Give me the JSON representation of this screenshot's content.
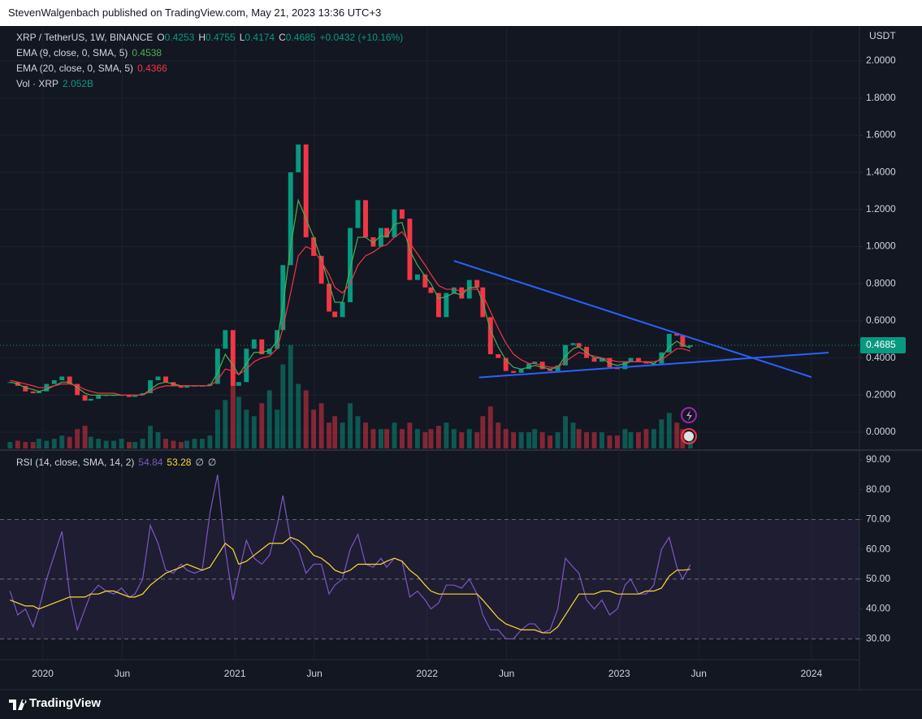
{
  "header": {
    "publisher": "StevenWalgenbach published on TradingView.com, May 21, 2023 13:36 UTC+3"
  },
  "footer": {
    "brand": "TradingView"
  },
  "chart_data": {
    "type": "candlestick",
    "title": "XRP / TetherUS, 1W, BINANCE",
    "ohlc": [
      {
        "label": "O",
        "value": 0.4253
      },
      {
        "label": "H",
        "value": 0.4755
      },
      {
        "label": "L",
        "value": 0.4174
      },
      {
        "label": "C",
        "value": 0.4685
      }
    ],
    "change": "+0.0432 (+10.16%)",
    "axis_label": "USDT",
    "up_color": "#089981",
    "down_color": "#f23645",
    "xlim": [
      2019.82,
      2024.25
    ],
    "xticks": [
      2020,
      {
        "value": 2020.414,
        "label": "Jun"
      },
      2021,
      {
        "value": 2021.414,
        "label": "Jun"
      },
      2022,
      {
        "value": 2022.414,
        "label": "Jun"
      },
      2023,
      {
        "value": 2023.414,
        "label": "Jun"
      },
      2024
    ],
    "ylim": [
      -0.0875,
      2.175
    ],
    "yticks": [
      {
        "value": 0,
        "label": "0.0000"
      },
      {
        "value": 0.2,
        "label": "0.2000"
      },
      {
        "value": 0.4,
        "label": "0.4000"
      },
      {
        "value": 0.6,
        "label": "0.6000"
      },
      {
        "value": 0.8,
        "label": "0.8000"
      },
      {
        "value": 1,
        "label": "1.0000"
      },
      {
        "value": 1.2,
        "label": "1.2000"
      },
      {
        "value": 1.4,
        "label": "1.4000"
      },
      {
        "value": 1.6,
        "label": "1.6000"
      },
      {
        "value": 1.8,
        "label": "1.8000"
      },
      {
        "value": 2,
        "label": "2.0000"
      }
    ],
    "grid": true,
    "x": [
      2019.83,
      2019.87,
      2019.91,
      2019.95,
      2019.98,
      2020.02,
      2020.06,
      2020.1,
      2020.14,
      2020.18,
      2020.22,
      2020.25,
      2020.29,
      2020.33,
      2020.37,
      2020.41,
      2020.45,
      2020.48,
      2020.52,
      2020.56,
      2020.6,
      2020.64,
      2020.68,
      2020.72,
      2020.75,
      2020.79,
      2020.83,
      2020.87,
      2020.91,
      2020.95,
      2020.99,
      2021.02,
      2021.06,
      2021.1,
      2021.14,
      2021.18,
      2021.22,
      2021.25,
      2021.29,
      2021.33,
      2021.37,
      2021.41,
      2021.45,
      2021.49,
      2021.52,
      2021.56,
      2021.6,
      2021.64,
      2021.68,
      2021.72,
      2021.76,
      2021.79,
      2021.83,
      2021.87,
      2021.91,
      2021.95,
      2021.99,
      2022.02,
      2022.06,
      2022.1,
      2022.14,
      2022.18,
      2022.22,
      2022.26,
      2022.29,
      2022.33,
      2022.37,
      2022.41,
      2022.45,
      2022.49,
      2022.53,
      2022.56,
      2022.6,
      2022.64,
      2022.68,
      2022.72,
      2022.76,
      2022.79,
      2022.83,
      2022.87,
      2022.91,
      2022.95,
      2022.99,
      2023.03,
      2023.06,
      2023.1,
      2023.14,
      2023.18,
      2023.22,
      2023.26,
      2023.3,
      2023.33,
      2023.37
    ],
    "close": [
      0.27,
      0.25,
      0.22,
      0.21,
      0.22,
      0.26,
      0.28,
      0.3,
      0.26,
      0.2,
      0.17,
      0.18,
      0.2,
      0.2,
      0.2,
      0.2,
      0.19,
      0.2,
      0.21,
      0.28,
      0.3,
      0.27,
      0.25,
      0.24,
      0.25,
      0.25,
      0.25,
      0.26,
      0.45,
      0.55,
      0.25,
      0.27,
      0.45,
      0.5,
      0.42,
      0.45,
      0.55,
      0.9,
      1.4,
      1.55,
      1.05,
      0.95,
      0.8,
      0.65,
      0.62,
      0.7,
      1.1,
      1.25,
      1.05,
      1.0,
      1.1,
      1.05,
      1.2,
      1.15,
      0.82,
      0.85,
      0.78,
      0.75,
      0.62,
      0.75,
      0.78,
      0.72,
      0.82,
      0.78,
      0.62,
      0.42,
      0.4,
      0.33,
      0.32,
      0.34,
      0.37,
      0.38,
      0.34,
      0.33,
      0.36,
      0.47,
      0.48,
      0.46,
      0.4,
      0.38,
      0.4,
      0.35,
      0.34,
      0.38,
      0.4,
      0.38,
      0.37,
      0.37,
      0.43,
      0.53,
      0.52,
      0.46,
      0.4685
    ],
    "series": [
      {
        "name": "EMA (9, close, 0, SMA, 5)",
        "color": "#4caf50",
        "values": [
          0.27,
          0.26,
          0.24,
          0.23,
          0.22,
          0.23,
          0.25,
          0.27,
          0.27,
          0.24,
          0.21,
          0.2,
          0.2,
          0.2,
          0.2,
          0.2,
          0.2,
          0.2,
          0.2,
          0.23,
          0.26,
          0.27,
          0.26,
          0.25,
          0.25,
          0.25,
          0.25,
          0.25,
          0.32,
          0.42,
          0.36,
          0.31,
          0.37,
          0.43,
          0.43,
          0.44,
          0.49,
          0.68,
          1.0,
          1.25,
          1.15,
          1.05,
          0.93,
          0.8,
          0.7,
          0.7,
          0.88,
          1.05,
          1.05,
          1.02,
          1.06,
          1.05,
          1.12,
          1.13,
          0.98,
          0.9,
          0.84,
          0.8,
          0.72,
          0.73,
          0.75,
          0.74,
          0.78,
          0.78,
          0.7,
          0.55,
          0.46,
          0.39,
          0.35,
          0.34,
          0.35,
          0.36,
          0.35,
          0.34,
          0.35,
          0.41,
          0.45,
          0.46,
          0.43,
          0.4,
          0.4,
          0.37,
          0.36,
          0.37,
          0.38,
          0.38,
          0.38,
          0.37,
          0.4,
          0.46,
          0.49,
          0.47,
          0.4538
        ]
      },
      {
        "name": "EMA (20, close, 0, SMA, 5)",
        "color": "#f23645",
        "values": [
          0.28,
          0.27,
          0.26,
          0.25,
          0.24,
          0.24,
          0.25,
          0.26,
          0.26,
          0.25,
          0.23,
          0.22,
          0.21,
          0.21,
          0.21,
          0.2,
          0.2,
          0.2,
          0.2,
          0.22,
          0.24,
          0.25,
          0.25,
          0.25,
          0.25,
          0.25,
          0.25,
          0.25,
          0.28,
          0.34,
          0.33,
          0.31,
          0.34,
          0.38,
          0.4,
          0.41,
          0.45,
          0.56,
          0.75,
          0.95,
          1.0,
          0.98,
          0.92,
          0.85,
          0.78,
          0.75,
          0.8,
          0.9,
          0.95,
          0.97,
          1.0,
          1.01,
          1.05,
          1.08,
          1.02,
          0.96,
          0.9,
          0.85,
          0.79,
          0.77,
          0.77,
          0.76,
          0.77,
          0.77,
          0.74,
          0.65,
          0.56,
          0.48,
          0.42,
          0.39,
          0.37,
          0.37,
          0.36,
          0.35,
          0.35,
          0.38,
          0.41,
          0.43,
          0.42,
          0.41,
          0.4,
          0.39,
          0.38,
          0.38,
          0.38,
          0.38,
          0.38,
          0.38,
          0.39,
          0.42,
          0.45,
          0.45,
          0.4366
        ]
      }
    ],
    "volume": {
      "name": "Vol · XRP",
      "last_label": "2.052B",
      "ylim": [
        0,
        65
      ],
      "values": [
        1.0,
        1.2,
        1.0,
        1.0,
        1.5,
        1.2,
        1.5,
        2.0,
        1.8,
        3.0,
        3.5,
        1.8,
        1.5,
        1.2,
        1.2,
        1.5,
        1.0,
        1.0,
        1.5,
        3.5,
        2.5,
        1.5,
        1.2,
        1.0,
        1.2,
        1.5,
        1.5,
        2.0,
        6.0,
        7.5,
        10,
        8,
        6,
        5,
        7,
        9,
        6,
        13,
        16,
        10,
        9,
        6,
        7,
        4,
        5,
        4,
        7,
        5,
        4,
        3,
        3,
        3,
        4,
        3,
        4,
        3,
        2.5,
        3,
        3.5,
        4,
        3,
        2.5,
        3,
        2.5,
        5,
        6.5,
        4,
        3,
        2.5,
        2.5,
        2.5,
        3,
        2.5,
        2,
        2.5,
        5,
        4,
        3,
        2.5,
        2.5,
        2.5,
        2,
        2,
        3,
        2.5,
        2.5,
        3,
        3,
        4.5,
        5.5,
        4,
        3,
        2.052
      ]
    },
    "trendlines": [
      {
        "color": "#2962ff",
        "x": [
          2022.14,
          2024.0
        ],
        "y": [
          0.923,
          0.297
        ]
      },
      {
        "color": "#2962ff",
        "x": [
          2022.27,
          2024.09
        ],
        "y": [
          0.295,
          0.429
        ]
      }
    ],
    "rsi": {
      "type": "line",
      "title": "RSI (14, close, SMA, 14, 2)",
      "ylim": [
        23,
        92.7
      ],
      "yticks": [
        {
          "value": 30,
          "label": "30.00"
        },
        {
          "value": 40,
          "label": "40.00"
        },
        {
          "value": 50,
          "label": "50.00"
        },
        {
          "value": 60,
          "label": "60.00"
        },
        {
          "value": 70,
          "label": "70.00"
        },
        {
          "value": 80,
          "label": "80.00"
        },
        {
          "value": 90,
          "label": "90.00"
        }
      ],
      "levels": [
        70,
        50,
        30
      ],
      "extra_labels": [
        "∅",
        "∅"
      ],
      "series": [
        {
          "color": "#7e57c2",
          "values": [
            46,
            38,
            40,
            34,
            40,
            50,
            58,
            66,
            45,
            33,
            40,
            45,
            48,
            46,
            45,
            47,
            44,
            45,
            50,
            68,
            62,
            53,
            52,
            55,
            53,
            52,
            53,
            72,
            85,
            60,
            43,
            52,
            63,
            57,
            55,
            58,
            68,
            78,
            63,
            60,
            52,
            55,
            55,
            45,
            48,
            50,
            60,
            65,
            55,
            54,
            57,
            54,
            57,
            56,
            44,
            46,
            43,
            40,
            42,
            48,
            48,
            47,
            50,
            45,
            38,
            33,
            33,
            30,
            30,
            33,
            35,
            35,
            32,
            33,
            40,
            57,
            54,
            52,
            43,
            40,
            43,
            38,
            40,
            48,
            50,
            45,
            45,
            48,
            60,
            64,
            54,
            50,
            54.84
          ]
        },
        {
          "color": "#fdd835",
          "values": [
            43,
            42,
            41,
            41,
            40,
            41,
            42,
            43,
            44,
            44,
            44,
            45,
            45,
            46,
            46,
            45,
            44,
            44,
            45,
            48,
            50,
            52,
            53,
            54,
            55,
            54,
            53,
            54,
            58,
            62,
            60,
            55,
            56,
            58,
            60,
            62,
            62,
            62,
            64,
            63,
            61,
            58,
            57,
            55,
            53,
            52,
            53,
            55,
            55,
            55,
            55,
            56,
            57,
            56,
            53,
            51,
            48,
            46,
            45,
            45,
            45,
            45,
            45,
            45,
            43,
            40,
            37,
            35,
            34,
            33,
            33,
            33,
            32,
            32,
            34,
            38,
            42,
            45,
            45,
            45,
            46,
            46,
            45,
            45,
            45,
            45,
            46,
            46,
            47,
            51,
            53,
            53,
            53.28
          ]
        }
      ]
    }
  }
}
